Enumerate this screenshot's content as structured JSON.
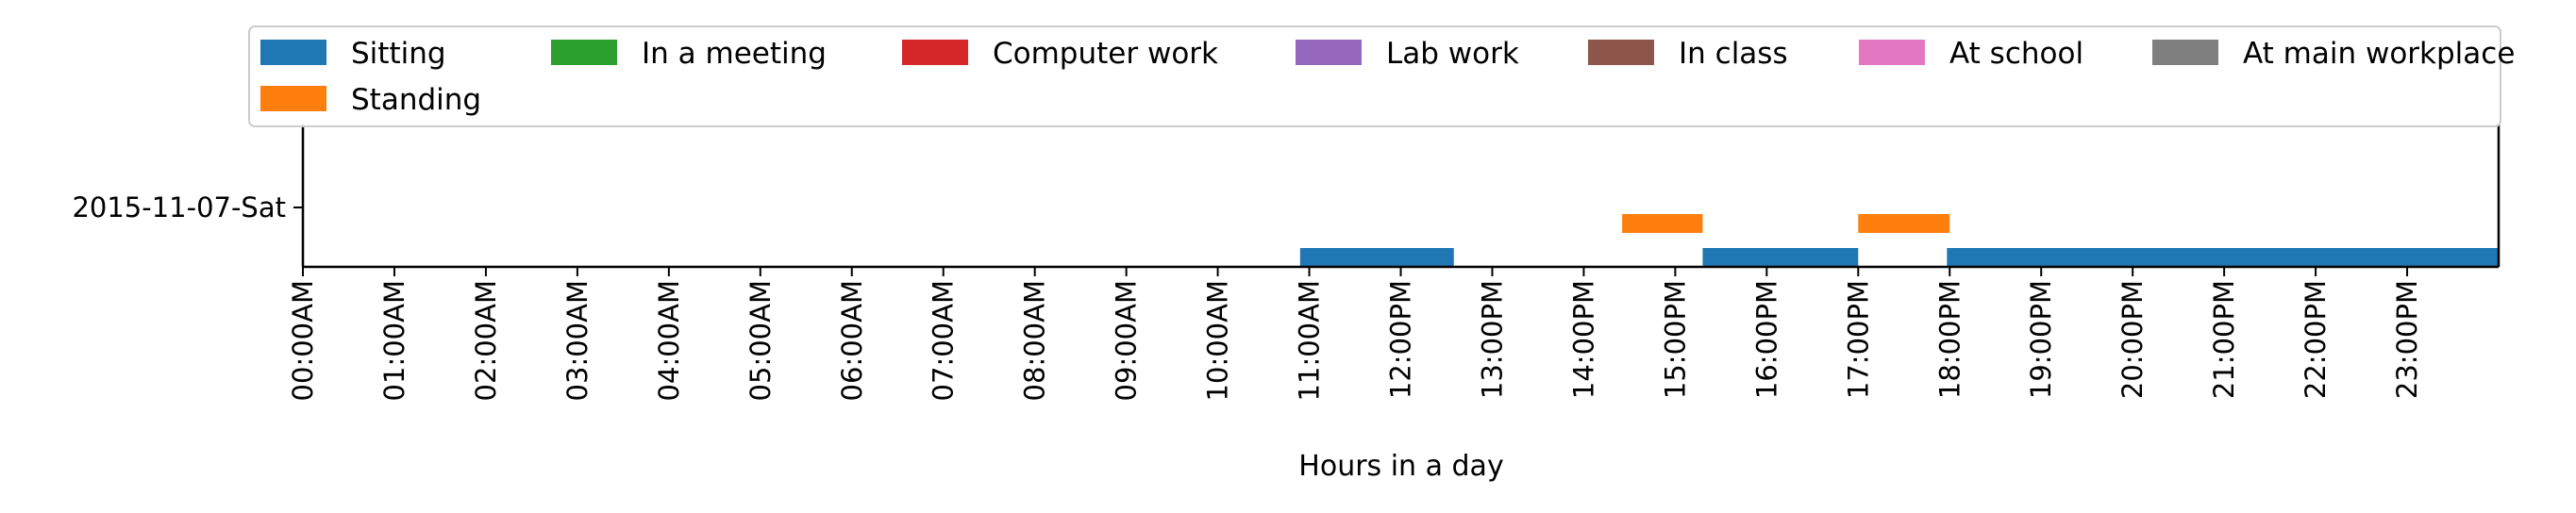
{
  "chart_data": {
    "type": "timeline",
    "title": "",
    "xlabel": "Hours in a day",
    "ylabel": "",
    "xlim": [
      0,
      24
    ],
    "x_ticks": [
      0,
      1,
      2,
      3,
      4,
      5,
      6,
      7,
      8,
      9,
      10,
      11,
      12,
      13,
      14,
      15,
      16,
      17,
      18,
      19,
      20,
      21,
      22,
      23
    ],
    "x_tick_labels": [
      "00:00AM",
      "01:00AM",
      "02:00AM",
      "03:00AM",
      "04:00AM",
      "05:00AM",
      "06:00AM",
      "07:00AM",
      "08:00AM",
      "09:00AM",
      "10:00AM",
      "11:00AM",
      "12:00PM",
      "13:00PM",
      "14:00PM",
      "15:00PM",
      "16:00PM",
      "17:00PM",
      "18:00PM",
      "19:00PM",
      "20:00PM",
      "21:00PM",
      "22:00PM",
      "23:00PM"
    ],
    "rows": [
      "2015-11-07-Sat"
    ],
    "legend_location": "top",
    "grid": false,
    "series": [
      {
        "name": "Sitting",
        "color": "#1f77b4",
        "row": 0,
        "level": 0,
        "intervals": [
          [
            10.9,
            12.58
          ],
          [
            15.3,
            17.0
          ],
          [
            17.97,
            24.0
          ]
        ]
      },
      {
        "name": "Standing",
        "color": "#ff7f0e",
        "row": 0,
        "level": 1,
        "intervals": [
          [
            14.42,
            15.3
          ],
          [
            17.0,
            18.0
          ]
        ]
      },
      {
        "name": "In a meeting",
        "color": "#2ca02c",
        "row": 0,
        "level": 2,
        "intervals": []
      },
      {
        "name": "Computer work",
        "color": "#d62728",
        "row": 0,
        "level": 3,
        "intervals": []
      },
      {
        "name": "Lab work",
        "color": "#9467bd",
        "row": 0,
        "level": 4,
        "intervals": []
      },
      {
        "name": "In class",
        "color": "#8c564b",
        "row": 0,
        "level": 5,
        "intervals": []
      },
      {
        "name": "At school",
        "color": "#e377c2",
        "row": 0,
        "level": 6,
        "intervals": []
      },
      {
        "name": "At main workplace",
        "color": "#7f7f7f",
        "row": 0,
        "level": 7,
        "intervals": []
      }
    ],
    "legend_order": [
      "Sitting",
      "In a meeting",
      "Computer work",
      "Lab work",
      "In class",
      "At school",
      "At main workplace",
      "Standing"
    ]
  }
}
